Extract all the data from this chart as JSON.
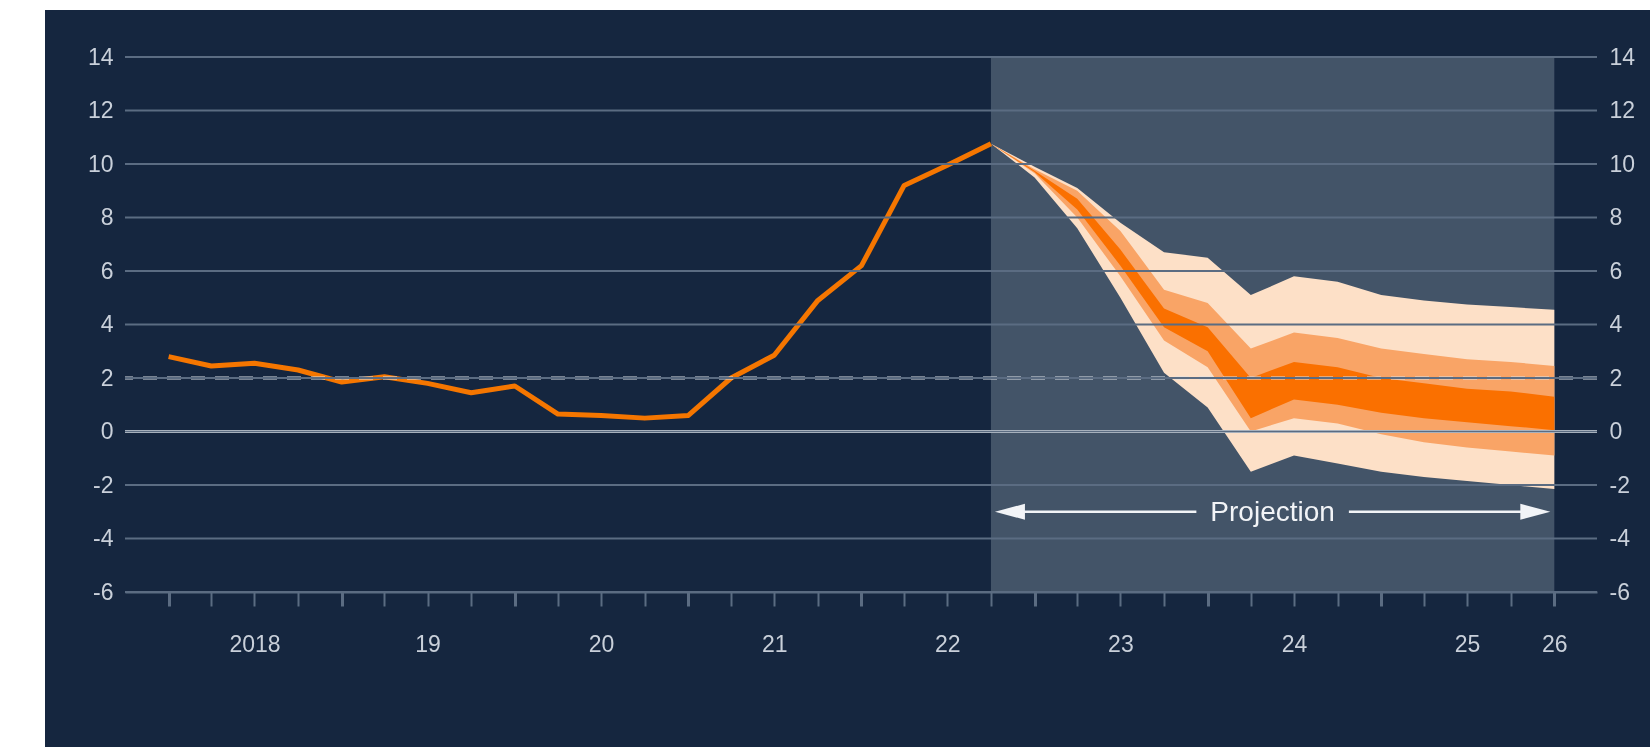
{
  "chart_data": {
    "type": "line",
    "xlim": [
      "2017-10",
      "2026-04"
    ],
    "xticks": [
      {
        "value": "2018-01",
        "label": null
      },
      {
        "value": "2018-04",
        "label": null
      },
      {
        "value": "2018-07",
        "label": "2018"
      },
      {
        "value": "2018-10",
        "label": null
      },
      {
        "value": "2019-01",
        "label": null
      },
      {
        "value": "2019-04",
        "label": null
      },
      {
        "value": "2019-07",
        "label": "19"
      },
      {
        "value": "2019-10",
        "label": null
      },
      {
        "value": "2020-01",
        "label": null
      },
      {
        "value": "2020-04",
        "label": null
      },
      {
        "value": "2020-07",
        "label": "20"
      },
      {
        "value": "2020-10",
        "label": null
      },
      {
        "value": "2021-01",
        "label": null
      },
      {
        "value": "2021-04",
        "label": null
      },
      {
        "value": "2021-07",
        "label": "21"
      },
      {
        "value": "2021-10",
        "label": null
      },
      {
        "value": "2022-01",
        "label": null
      },
      {
        "value": "2022-04",
        "label": null
      },
      {
        "value": "2022-07",
        "label": "22"
      },
      {
        "value": "2022-10",
        "label": null
      },
      {
        "value": "2023-01",
        "label": null
      },
      {
        "value": "2023-04",
        "label": null
      },
      {
        "value": "2023-07",
        "label": "23"
      },
      {
        "value": "2023-10",
        "label": null
      },
      {
        "value": "2024-01",
        "label": null
      },
      {
        "value": "2024-04",
        "label": null
      },
      {
        "value": "2024-07",
        "label": "24"
      },
      {
        "value": "2024-10",
        "label": null
      },
      {
        "value": "2025-01",
        "label": null
      },
      {
        "value": "2025-04",
        "label": null
      },
      {
        "value": "2025-07",
        "label": "25"
      },
      {
        "value": "2025-10",
        "label": null
      },
      {
        "value": "2026-01",
        "label": "26"
      }
    ],
    "ylim": [
      -6,
      14
    ],
    "yticks": [
      -6,
      -4,
      -2,
      0,
      2,
      4,
      6,
      8,
      10,
      12,
      14
    ],
    "y2lim": [
      -6,
      14
    ],
    "y2ticks": [
      -6,
      -4,
      -2,
      0,
      2,
      4,
      6,
      8,
      10,
      12,
      14
    ],
    "grid": "y",
    "series": [
      {
        "type": "line",
        "color": "#fde0c7",
        "x": [
          "2022-10",
          "2023-01",
          "2023-04",
          "2023-07",
          "2023-10",
          "2024-01",
          "2024-04",
          "2024-07",
          "2024-10",
          "2025-01",
          "2025-04",
          "2025-07",
          "2025-10",
          "2026-01"
        ],
        "values": [
          null,
          null,
          null,
          null,
          null,
          null,
          null,
          null,
          null,
          null,
          null,
          null,
          null,
          null
        ],
        "upper": [
          10.76,
          9.9,
          9.1,
          7.8,
          6.7,
          6.5,
          5.1,
          5.8,
          5.6,
          5.1,
          4.9,
          4.75,
          4.65,
          4.55
        ],
        "lower": [
          10.76,
          9.5,
          7.6,
          5.0,
          2.2,
          0.9,
          -1.5,
          -0.9,
          -1.2,
          -1.5,
          -1.7,
          -1.85,
          -2.0,
          -2.15
        ]
      },
      {
        "type": "line",
        "color": "#f9a466",
        "x": [
          "2022-10",
          "2023-01",
          "2023-04",
          "2023-07",
          "2023-10",
          "2024-01",
          "2024-04",
          "2024-07",
          "2024-10",
          "2025-01",
          "2025-04",
          "2025-07",
          "2025-10",
          "2026-01"
        ],
        "values": [
          null,
          null,
          null,
          null,
          null,
          null,
          null,
          null,
          null,
          null,
          null,
          null,
          null,
          null
        ],
        "upper": [
          10.76,
          9.8,
          9.0,
          7.5,
          5.3,
          4.8,
          3.1,
          3.7,
          3.5,
          3.1,
          2.9,
          2.7,
          2.6,
          2.45
        ],
        "lower": [
          10.76,
          9.65,
          8.0,
          5.8,
          3.4,
          2.4,
          0.0,
          0.5,
          0.3,
          -0.1,
          -0.4,
          -0.6,
          -0.75,
          -0.9
        ]
      },
      {
        "type": "line",
        "color": "#fa7000",
        "x": [
          "2022-10",
          "2023-01",
          "2023-04",
          "2023-07",
          "2023-10",
          "2024-01",
          "2024-04",
          "2024-07",
          "2024-10",
          "2025-01",
          "2025-04",
          "2025-07",
          "2025-10",
          "2026-01"
        ],
        "values": [
          null,
          null,
          null,
          null,
          null,
          null,
          null,
          null,
          null,
          null,
          null,
          null,
          null,
          null
        ],
        "upper": [
          10.76,
          9.75,
          8.7,
          6.8,
          4.6,
          3.9,
          2.0,
          2.6,
          2.4,
          2.0,
          1.8,
          1.6,
          1.5,
          1.3
        ],
        "lower": [
          10.76,
          9.7,
          8.3,
          6.2,
          3.9,
          3.0,
          0.5,
          1.2,
          1.0,
          0.7,
          0.5,
          0.35,
          0.2,
          0.05
        ]
      },
      {
        "type": "line",
        "color": "#f57600",
        "x": [
          "2018-01",
          "2018-04",
          "2018-07",
          "2018-10",
          "2019-01",
          "2019-04",
          "2019-07",
          "2019-10",
          "2020-01",
          "2020-04",
          "2020-07",
          "2020-10",
          "2021-01",
          "2021-04",
          "2021-07",
          "2021-10",
          "2022-01",
          "2022-04",
          "2022-07",
          "2022-10"
        ],
        "values": [
          2.8,
          2.45,
          2.55,
          2.3,
          1.85,
          2.05,
          1.8,
          1.45,
          1.7,
          0.65,
          0.6,
          0.5,
          0.6,
          2.0,
          2.85,
          4.9,
          6.2,
          9.2,
          9.95,
          10.76
        ]
      }
    ],
    "line_style": "solid",
    "ref_lines": [
      {
        "axis": "y",
        "value": 0,
        "color": "#f2f4f7",
        "line_style": "solid"
      },
      {
        "axis": "y",
        "value": 2,
        "color": "#dde1e7",
        "line_style": "dashed"
      }
    ],
    "bands": [
      {
        "axis": "x",
        "from": "2022-10",
        "to": "2026-01",
        "color": "#435468",
        "label": "Projection"
      }
    ]
  }
}
